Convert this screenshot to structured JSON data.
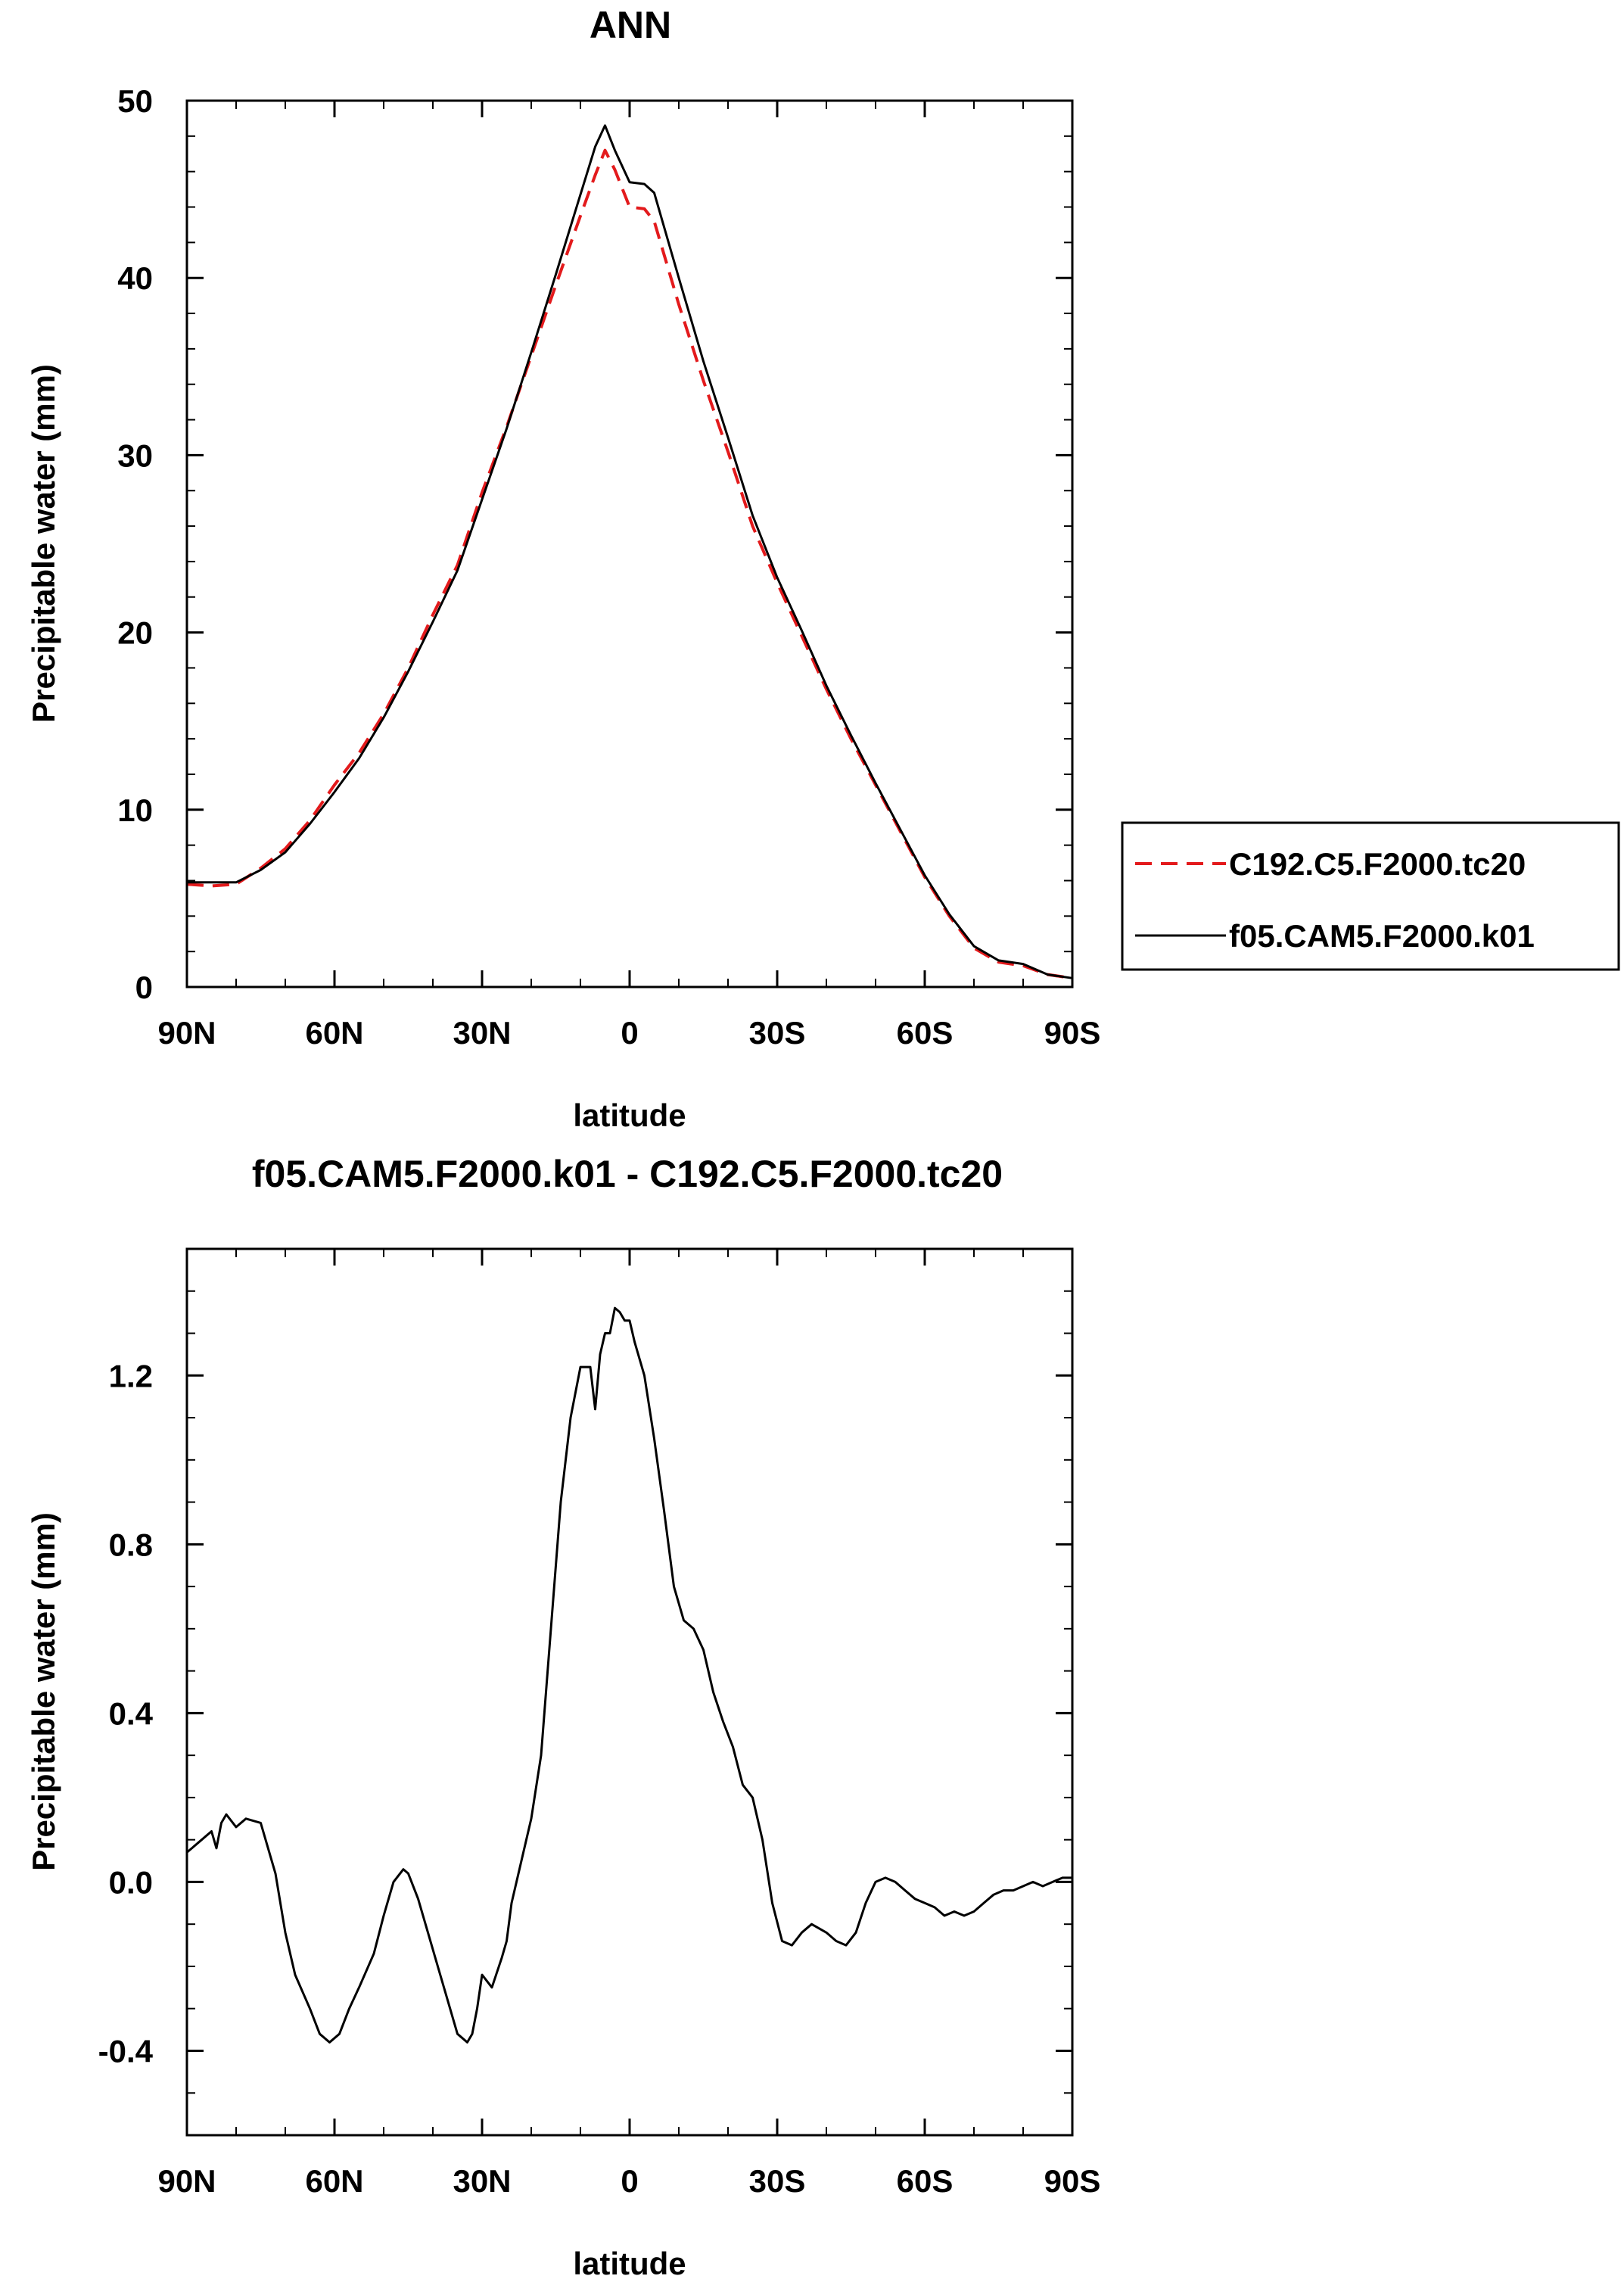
{
  "chart_data": [
    {
      "type": "line",
      "title": "ANN",
      "xlabel": "latitude",
      "ylabel": "Precipitable water (mm)",
      "xlim": [
        90,
        -90
      ],
      "ylim": [
        0,
        50
      ],
      "xticks": [
        90,
        60,
        30,
        0,
        -30,
        -60,
        -90
      ],
      "xtick_labels": [
        "90N",
        "60N",
        "30N",
        "0",
        "30S",
        "60S",
        "90S"
      ],
      "yticks": [
        0,
        10,
        20,
        30,
        40,
        50
      ],
      "ytick_labels": [
        "0",
        "10",
        "20",
        "30",
        "40",
        "50"
      ],
      "legend_position": "right",
      "series": [
        {
          "name": "C192.C5.F2000.tc20",
          "color": "#e31a1c",
          "style": "dashed",
          "x": [
            90,
            85,
            80,
            75,
            70,
            65,
            60,
            55,
            50,
            45,
            40,
            35,
            30,
            25,
            20,
            15,
            10,
            7,
            5,
            3,
            0,
            -3,
            -5,
            -10,
            -15,
            -20,
            -25,
            -30,
            -35,
            -40,
            -45,
            -50,
            -55,
            -60,
            -65,
            -70,
            -75,
            -80,
            -85,
            -90
          ],
          "y": [
            5.8,
            5.7,
            5.8,
            6.7,
            7.8,
            9.4,
            11.4,
            13.2,
            15.4,
            18.0,
            21.0,
            23.8,
            27.9,
            31.6,
            35.6,
            39.6,
            43.5,
            45.8,
            47.2,
            46.1,
            44.0,
            43.9,
            43.2,
            38.5,
            34.2,
            30.2,
            26.0,
            22.8,
            19.8,
            16.8,
            14.0,
            11.4,
            8.8,
            6.2,
            4.0,
            2.2,
            1.4,
            1.2,
            0.7,
            0.5
          ]
        },
        {
          "name": "f05.CAM5.F2000.k01",
          "color": "#000000",
          "style": "solid",
          "x": [
            90,
            85,
            80,
            75,
            70,
            65,
            60,
            55,
            50,
            45,
            40,
            35,
            30,
            25,
            20,
            15,
            10,
            7,
            5,
            3,
            0,
            -3,
            -5,
            -10,
            -15,
            -20,
            -25,
            -30,
            -35,
            -40,
            -45,
            -50,
            -55,
            -60,
            -65,
            -70,
            -75,
            -80,
            -85,
            -90
          ],
          "y": [
            5.9,
            5.9,
            5.9,
            6.6,
            7.6,
            9.2,
            11.0,
            12.9,
            15.2,
            17.8,
            20.6,
            23.5,
            27.5,
            31.5,
            35.8,
            40.2,
            44.7,
            47.4,
            48.6,
            47.2,
            45.4,
            45.3,
            44.8,
            40.0,
            35.3,
            31.0,
            26.6,
            23.1,
            20.1,
            17.0,
            14.2,
            11.5,
            8.9,
            6.3,
            4.1,
            2.3,
            1.5,
            1.3,
            0.7,
            0.5
          ]
        }
      ]
    },
    {
      "type": "line",
      "title": "f05.CAM5.F2000.k01 - C192.C5.F2000.tc20",
      "xlabel": "latitude",
      "ylabel": "Precipitable water (mm)",
      "xlim": [
        90,
        -90
      ],
      "ylim": [
        -0.6,
        1.5
      ],
      "xticks": [
        90,
        60,
        30,
        0,
        -30,
        -60,
        -90
      ],
      "xtick_labels": [
        "90N",
        "60N",
        "30N",
        "0",
        "30S",
        "60S",
        "90S"
      ],
      "yticks": [
        -0.4,
        0.0,
        0.4,
        0.8,
        1.2
      ],
      "ytick_labels": [
        "-0.4",
        "0.0",
        "0.4",
        "0.8",
        "1.2"
      ],
      "series": [
        {
          "color": "#000000",
          "style": "solid",
          "x": [
            90,
            87,
            85,
            84,
            83,
            82,
            80,
            78,
            75,
            72,
            70,
            68,
            65,
            63,
            61,
            59,
            57,
            55,
            52,
            50,
            48,
            46,
            45,
            43,
            41,
            39,
            37,
            35,
            33,
            32,
            31,
            30,
            28,
            26,
            25,
            24,
            22,
            20,
            18,
            16,
            14,
            12,
            10,
            8,
            7,
            6,
            5,
            4,
            3,
            2,
            1,
            0,
            -1,
            -3,
            -5,
            -7,
            -9,
            -11,
            -13,
            -15,
            -17,
            -19,
            -21,
            -23,
            -25,
            -27,
            -29,
            -31,
            -33,
            -35,
            -37,
            -40,
            -42,
            -44,
            -46,
            -48,
            -50,
            -52,
            -54,
            -56,
            -58,
            -60,
            -62,
            -64,
            -66,
            -68,
            -70,
            -72,
            -74,
            -76,
            -78,
            -80,
            -82,
            -84,
            -86,
            -88,
            -90
          ],
          "y": [
            0.07,
            0.1,
            0.12,
            0.08,
            0.14,
            0.16,
            0.13,
            0.15,
            0.14,
            0.02,
            -0.12,
            -0.22,
            -0.3,
            -0.36,
            -0.38,
            -0.36,
            -0.3,
            -0.25,
            -0.17,
            -0.08,
            0.0,
            0.03,
            0.02,
            -0.04,
            -0.12,
            -0.2,
            -0.28,
            -0.36,
            -0.38,
            -0.36,
            -0.3,
            -0.22,
            -0.25,
            -0.18,
            -0.14,
            -0.05,
            0.05,
            0.15,
            0.3,
            0.6,
            0.9,
            1.1,
            1.22,
            1.22,
            1.12,
            1.25,
            1.3,
            1.3,
            1.36,
            1.35,
            1.33,
            1.33,
            1.28,
            1.2,
            1.05,
            0.88,
            0.7,
            0.62,
            0.6,
            0.55,
            0.45,
            0.38,
            0.32,
            0.23,
            0.2,
            0.1,
            -0.05,
            -0.14,
            -0.15,
            -0.12,
            -0.1,
            -0.12,
            -0.14,
            -0.15,
            -0.12,
            -0.05,
            0.0,
            0.01,
            0.0,
            -0.02,
            -0.04,
            -0.05,
            -0.06,
            -0.08,
            -0.07,
            -0.08,
            -0.07,
            -0.05,
            -0.03,
            -0.02,
            -0.02,
            -0.01,
            0.0,
            -0.01,
            0.0,
            0.01,
            0.01
          ]
        }
      ]
    }
  ]
}
